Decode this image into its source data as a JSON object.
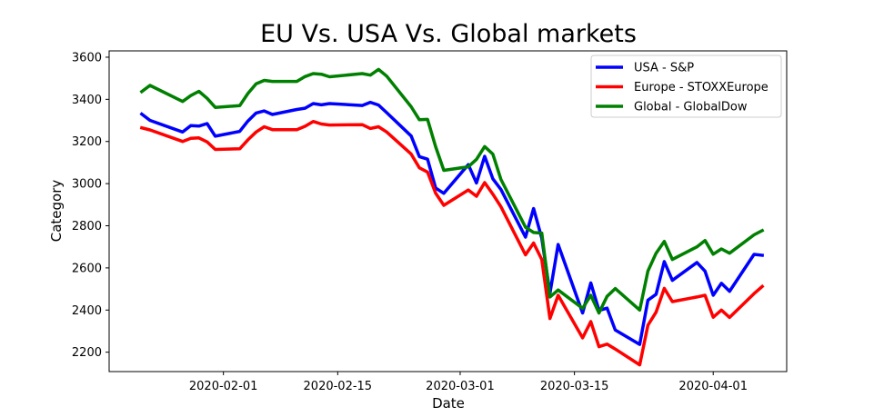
{
  "chart_data": {
    "type": "line",
    "title": "EU Vs. USA Vs. Global markets",
    "xlabel": "Date",
    "ylabel": "Category",
    "x_ticks": [
      "2020-02-01",
      "2020-02-15",
      "2020-03-01",
      "2020-03-15",
      "2020-04-01"
    ],
    "y_ticks": [
      2200,
      2400,
      2600,
      2800,
      3000,
      3200,
      3400,
      3600
    ],
    "xlim": [
      "2020-01-18",
      "2020-04-10"
    ],
    "ylim": [
      2108,
      3630
    ],
    "grid": false,
    "legend": "top-right",
    "series": [
      {
        "name": "USA - S&P",
        "color": "#0000ff",
        "points": [
          [
            "2020-01-22",
            3330
          ],
          [
            "2020-01-23",
            3300
          ],
          [
            "2020-01-27",
            3245
          ],
          [
            "2020-01-28",
            3275
          ],
          [
            "2020-01-29",
            3273
          ],
          [
            "2020-01-30",
            3285
          ],
          [
            "2020-01-31",
            3225
          ],
          [
            "2020-02-03",
            3248
          ],
          [
            "2020-02-04",
            3297
          ],
          [
            "2020-02-05",
            3335
          ],
          [
            "2020-02-06",
            3345
          ],
          [
            "2020-02-07",
            3328
          ],
          [
            "2020-02-10",
            3352
          ],
          [
            "2020-02-11",
            3358
          ],
          [
            "2020-02-12",
            3380
          ],
          [
            "2020-02-13",
            3374
          ],
          [
            "2020-02-14",
            3380
          ],
          [
            "2020-02-18",
            3371
          ],
          [
            "2020-02-19",
            3386
          ],
          [
            "2020-02-20",
            3373
          ],
          [
            "2020-02-21",
            3337
          ],
          [
            "2020-02-24",
            3226
          ],
          [
            "2020-02-25",
            3128
          ],
          [
            "2020-02-26",
            3116
          ],
          [
            "2020-02-27",
            2979
          ],
          [
            "2020-02-28",
            2954
          ],
          [
            "2020-03-02",
            3090
          ],
          [
            "2020-03-03",
            3003
          ],
          [
            "2020-03-04",
            3130
          ],
          [
            "2020-03-05",
            3023
          ],
          [
            "2020-03-06",
            2972
          ],
          [
            "2020-03-09",
            2746
          ],
          [
            "2020-03-10",
            2882
          ],
          [
            "2020-03-11",
            2741
          ],
          [
            "2020-03-12",
            2480
          ],
          [
            "2020-03-13",
            2711
          ],
          [
            "2020-03-16",
            2386
          ],
          [
            "2020-03-17",
            2529
          ],
          [
            "2020-03-18",
            2398
          ],
          [
            "2020-03-19",
            2409
          ],
          [
            "2020-03-20",
            2305
          ],
          [
            "2020-03-23",
            2237
          ],
          [
            "2020-03-24",
            2447
          ],
          [
            "2020-03-25",
            2475
          ],
          [
            "2020-03-26",
            2630
          ],
          [
            "2020-03-27",
            2541
          ],
          [
            "2020-03-30",
            2626
          ],
          [
            "2020-03-31",
            2585
          ],
          [
            "2020-04-01",
            2470
          ],
          [
            "2020-04-02",
            2527
          ],
          [
            "2020-04-03",
            2489
          ],
          [
            "2020-04-06",
            2664
          ],
          [
            "2020-04-07",
            2660
          ]
        ]
      },
      {
        "name": "Europe - STOXXEurope",
        "color": "#ff0000",
        "points": [
          [
            "2020-01-22",
            3265
          ],
          [
            "2020-01-23",
            3255
          ],
          [
            "2020-01-27",
            3200
          ],
          [
            "2020-01-28",
            3215
          ],
          [
            "2020-01-29",
            3217
          ],
          [
            "2020-01-30",
            3198
          ],
          [
            "2020-01-31",
            3162
          ],
          [
            "2020-02-03",
            3165
          ],
          [
            "2020-02-04",
            3208
          ],
          [
            "2020-02-05",
            3245
          ],
          [
            "2020-02-06",
            3270
          ],
          [
            "2020-02-07",
            3256
          ],
          [
            "2020-02-10",
            3256
          ],
          [
            "2020-02-11",
            3272
          ],
          [
            "2020-02-12",
            3295
          ],
          [
            "2020-02-13",
            3283
          ],
          [
            "2020-02-14",
            3278
          ],
          [
            "2020-02-18",
            3280
          ],
          [
            "2020-02-19",
            3262
          ],
          [
            "2020-02-20",
            3270
          ],
          [
            "2020-02-21",
            3245
          ],
          [
            "2020-02-24",
            3140
          ],
          [
            "2020-02-25",
            3075
          ],
          [
            "2020-02-26",
            3055
          ],
          [
            "2020-02-27",
            2955
          ],
          [
            "2020-02-28",
            2897
          ],
          [
            "2020-03-02",
            2970
          ],
          [
            "2020-03-03",
            2940
          ],
          [
            "2020-03-04",
            3005
          ],
          [
            "2020-03-05",
            2950
          ],
          [
            "2020-03-06",
            2890
          ],
          [
            "2020-03-09",
            2662
          ],
          [
            "2020-03-10",
            2718
          ],
          [
            "2020-03-11",
            2640
          ],
          [
            "2020-03-12",
            2360
          ],
          [
            "2020-03-13",
            2470
          ],
          [
            "2020-03-16",
            2268
          ],
          [
            "2020-03-17",
            2345
          ],
          [
            "2020-03-18",
            2226
          ],
          [
            "2020-03-19",
            2238
          ],
          [
            "2020-03-20",
            2215
          ],
          [
            "2020-03-23",
            2140
          ],
          [
            "2020-03-24",
            2328
          ],
          [
            "2020-03-25",
            2390
          ],
          [
            "2020-03-26",
            2503
          ],
          [
            "2020-03-27",
            2440
          ],
          [
            "2020-03-30",
            2462
          ],
          [
            "2020-03-31",
            2470
          ],
          [
            "2020-04-01",
            2366
          ],
          [
            "2020-04-02",
            2400
          ],
          [
            "2020-04-03",
            2365
          ],
          [
            "2020-04-06",
            2478
          ],
          [
            "2020-04-07",
            2512
          ]
        ]
      },
      {
        "name": "Global - GlobalDow",
        "color": "#008000",
        "points": [
          [
            "2020-01-22",
            3437
          ],
          [
            "2020-01-23",
            3466
          ],
          [
            "2020-01-27",
            3390
          ],
          [
            "2020-01-28",
            3418
          ],
          [
            "2020-01-29",
            3438
          ],
          [
            "2020-01-30",
            3405
          ],
          [
            "2020-01-31",
            3362
          ],
          [
            "2020-02-03",
            3370
          ],
          [
            "2020-02-04",
            3428
          ],
          [
            "2020-02-05",
            3474
          ],
          [
            "2020-02-06",
            3490
          ],
          [
            "2020-02-07",
            3485
          ],
          [
            "2020-02-10",
            3485
          ],
          [
            "2020-02-11",
            3508
          ],
          [
            "2020-02-12",
            3522
          ],
          [
            "2020-02-13",
            3519
          ],
          [
            "2020-02-14",
            3507
          ],
          [
            "2020-02-18",
            3522
          ],
          [
            "2020-02-19",
            3515
          ],
          [
            "2020-02-20",
            3542
          ],
          [
            "2020-02-21",
            3510
          ],
          [
            "2020-02-24",
            3365
          ],
          [
            "2020-02-25",
            3303
          ],
          [
            "2020-02-26",
            3305
          ],
          [
            "2020-02-27",
            3175
          ],
          [
            "2020-02-28",
            3063
          ],
          [
            "2020-03-02",
            3080
          ],
          [
            "2020-03-03",
            3115
          ],
          [
            "2020-03-04",
            3176
          ],
          [
            "2020-03-05",
            3140
          ],
          [
            "2020-03-06",
            3020
          ],
          [
            "2020-03-09",
            2793
          ],
          [
            "2020-03-10",
            2768
          ],
          [
            "2020-03-11",
            2765
          ],
          [
            "2020-03-12",
            2462
          ],
          [
            "2020-03-13",
            2495
          ],
          [
            "2020-03-16",
            2408
          ],
          [
            "2020-03-17",
            2470
          ],
          [
            "2020-03-18",
            2386
          ],
          [
            "2020-03-19",
            2465
          ],
          [
            "2020-03-20",
            2502
          ],
          [
            "2020-03-23",
            2400
          ],
          [
            "2020-03-24",
            2585
          ],
          [
            "2020-03-25",
            2670
          ],
          [
            "2020-03-26",
            2726
          ],
          [
            "2020-03-27",
            2640
          ],
          [
            "2020-03-30",
            2700
          ],
          [
            "2020-03-31",
            2730
          ],
          [
            "2020-04-01",
            2665
          ],
          [
            "2020-04-02",
            2690
          ],
          [
            "2020-04-03",
            2670
          ],
          [
            "2020-04-06",
            2757
          ],
          [
            "2020-04-07",
            2777
          ]
        ]
      }
    ]
  }
}
